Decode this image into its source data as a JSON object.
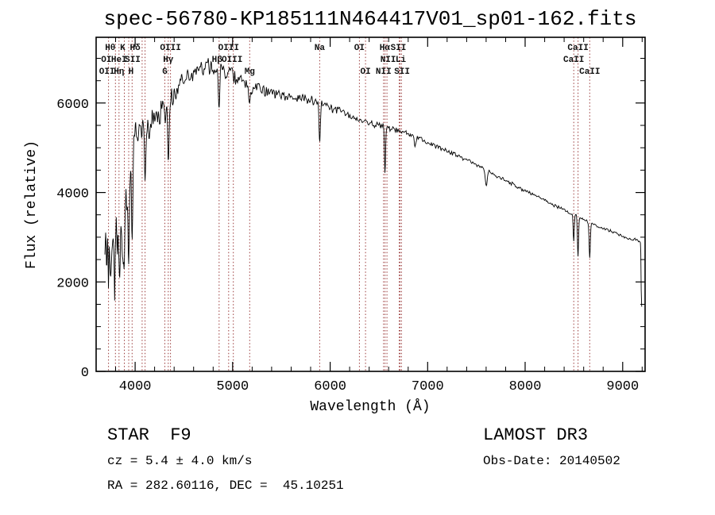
{
  "chart_data": {
    "type": "line",
    "title": "spec-56780-KP185111N464417V01_sp01-162.fits",
    "xlabel": "Wavelength (Å)",
    "ylabel": "Flux (relative)",
    "xlim": [
      3600,
      9230
    ],
    "ylim": [
      0,
      7470
    ],
    "xticks": [
      4000,
      5000,
      6000,
      7000,
      8000,
      9000
    ],
    "yticks": [
      0,
      2000,
      4000,
      6000
    ],
    "x_minor_step": 200,
    "y_minor_step": 500,
    "grid": false,
    "legend": "none",
    "series": [
      {
        "name": "LAMOST spectrum flux",
        "color": "#000000",
        "sample_step": 4,
        "continuum_points": [
          [
            3690,
            2200
          ],
          [
            3720,
            2780
          ],
          [
            3760,
            2700
          ],
          [
            3800,
            2980
          ],
          [
            3850,
            3160
          ],
          [
            3900,
            3500
          ],
          [
            3930,
            3900
          ],
          [
            3950,
            4400
          ],
          [
            3970,
            4900
          ],
          [
            4000,
            5380
          ],
          [
            4060,
            5450
          ],
          [
            4150,
            5550
          ],
          [
            4250,
            5800
          ],
          [
            4350,
            6050
          ],
          [
            4450,
            6350
          ],
          [
            4550,
            6600
          ],
          [
            4650,
            6750
          ],
          [
            4750,
            6820
          ],
          [
            4850,
            6800
          ],
          [
            4950,
            6680
          ],
          [
            5050,
            6550
          ],
          [
            5150,
            6420
          ],
          [
            5250,
            6320
          ],
          [
            5400,
            6210
          ],
          [
            5550,
            6160
          ],
          [
            5700,
            6110
          ],
          [
            5850,
            6060
          ],
          [
            6000,
            5920
          ],
          [
            6150,
            5780
          ],
          [
            6300,
            5640
          ],
          [
            6450,
            5540
          ],
          [
            6600,
            5430
          ],
          [
            6750,
            5350
          ],
          [
            6900,
            5210
          ],
          [
            7050,
            5070
          ],
          [
            7200,
            4930
          ],
          [
            7350,
            4780
          ],
          [
            7500,
            4620
          ],
          [
            7650,
            4450
          ],
          [
            7800,
            4260
          ],
          [
            7950,
            4090
          ],
          [
            8100,
            3930
          ],
          [
            8250,
            3770
          ],
          [
            8400,
            3610
          ],
          [
            8550,
            3460
          ],
          [
            8700,
            3290
          ],
          [
            8850,
            3160
          ],
          [
            9000,
            3020
          ],
          [
            9100,
            2960
          ],
          [
            9170,
            2920
          ],
          [
            9185,
            2840
          ],
          [
            9191,
            1600
          ],
          [
            9196,
            1450
          ]
        ],
        "absorption_features": [
          [
            3797,
            900,
            6
          ],
          [
            3835,
            900,
            6
          ],
          [
            3889,
            1000,
            6
          ],
          [
            3934,
            1600,
            7
          ],
          [
            3969,
            1600,
            7
          ],
          [
            4102,
            1400,
            7
          ],
          [
            4305,
            450,
            8
          ],
          [
            4340,
            1150,
            7
          ],
          [
            4861,
            1050,
            7
          ],
          [
            5175,
            450,
            9
          ],
          [
            5893,
            820,
            7
          ],
          [
            6563,
            1000,
            6
          ],
          [
            6870,
            280,
            8
          ],
          [
            7600,
            330,
            10
          ],
          [
            8498,
            620,
            6
          ],
          [
            8542,
            880,
            6
          ],
          [
            8662,
            800,
            6
          ]
        ],
        "noise_amplitude_profile": [
          [
            3690,
            1300
          ],
          [
            3900,
            950
          ],
          [
            3945,
            600
          ],
          [
            3990,
            430
          ],
          [
            4200,
            400
          ],
          [
            4450,
            320
          ],
          [
            4700,
            270
          ],
          [
            5000,
            230
          ],
          [
            5300,
            185
          ],
          [
            5600,
            155
          ],
          [
            5900,
            135
          ],
          [
            6200,
            110
          ],
          [
            6500,
            95
          ],
          [
            6800,
            80
          ],
          [
            7100,
            68
          ],
          [
            7500,
            60
          ],
          [
            8000,
            52
          ],
          [
            8500,
            48
          ],
          [
            9000,
            42
          ],
          [
            9196,
            38
          ]
        ]
      }
    ],
    "spectral_line_markers": {
      "color": "#9b3b3b",
      "label_color": "#111111",
      "style": "dotted-vertical",
      "wavelengths": [
        3727,
        3798,
        3835,
        3889,
        3934,
        3969,
        4072,
        4102,
        4305,
        4340,
        4363,
        4861,
        4959,
        5007,
        5175,
        5893,
        6300,
        6363,
        6548,
        6563,
        6583,
        6708,
        6717,
        6731,
        8498,
        8542,
        8662
      ],
      "labels": [
        {
          "text": "Hθ",
          "x": 3745,
          "row": 1
        },
        {
          "text": "K",
          "x": 3872,
          "row": 1
        },
        {
          "text": "Hδ",
          "x": 4000,
          "row": 1
        },
        {
          "text": "OI",
          "x": 3705,
          "row": 2
        },
        {
          "text": "HeI",
          "x": 3835,
          "row": 2
        },
        {
          "text": "SII",
          "x": 3975,
          "row": 2
        },
        {
          "text": "OII",
          "x": 3712,
          "row": 3
        },
        {
          "text": "Hη",
          "x": 3835,
          "row": 3
        },
        {
          "text": "H",
          "x": 3958,
          "row": 3
        },
        {
          "text": "OIII",
          "x": 4363,
          "row": 1
        },
        {
          "text": "Hγ",
          "x": 4340,
          "row": 2
        },
        {
          "text": "G",
          "x": 4305,
          "row": 3
        },
        {
          "text": "OIII",
          "x": 4959,
          "row": 1
        },
        {
          "text": "Hβ",
          "x": 4840,
          "row": 2
        },
        {
          "text": "OIII",
          "x": 4995,
          "row": 2
        },
        {
          "text": "Mg",
          "x": 5175,
          "row": 3
        },
        {
          "text": "Na",
          "x": 5893,
          "row": 1
        },
        {
          "text": "OI",
          "x": 6300,
          "row": 1
        },
        {
          "text": "Hα",
          "x": 6560,
          "row": 1
        },
        {
          "text": "SII",
          "x": 6700,
          "row": 1
        },
        {
          "text": "NII",
          "x": 6595,
          "row": 2
        },
        {
          "text": "Li",
          "x": 6725,
          "row": 2
        },
        {
          "text": "OI",
          "x": 6363,
          "row": 3
        },
        {
          "text": "NII",
          "x": 6548,
          "row": 3
        },
        {
          "text": "SII",
          "x": 6738,
          "row": 3
        },
        {
          "text": "CaII",
          "x": 8542,
          "row": 1
        },
        {
          "text": "CaII",
          "x": 8498,
          "row": 2
        },
        {
          "text": "CaII",
          "x": 8662,
          "row": 3
        }
      ]
    }
  },
  "annotations": {
    "class_label": "STAR  F9",
    "cz": "cz = 5.4 ± 4.0 km/s",
    "radec": "RA = 282.60116, DEC =  45.10251",
    "survey": "LAMOST DR3",
    "obs_date": "Obs-Date: 20140502"
  }
}
